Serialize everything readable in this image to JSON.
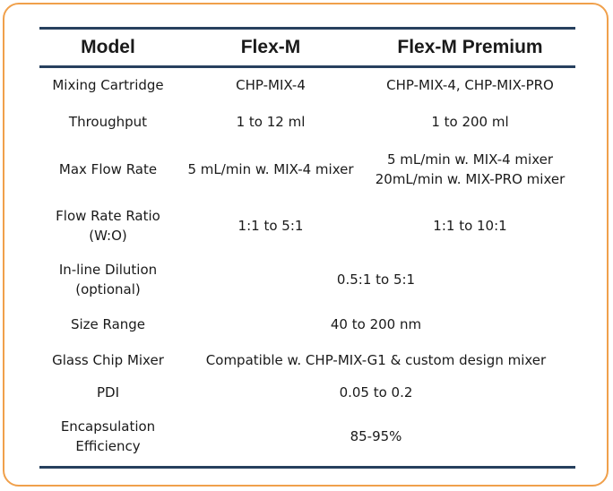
{
  "table": {
    "headers": [
      "Model",
      "Flex-M",
      "Flex-M Premium"
    ],
    "rows": [
      {
        "label": [
          "Mixing Cartridge"
        ],
        "flexm": [
          "CHP-MIX-4"
        ],
        "premium": [
          "CHP-MIX-4, CHP-MIX-PRO"
        ]
      },
      {
        "label": [
          "Throughput"
        ],
        "flexm": [
          "1 to 12 ml"
        ],
        "premium": [
          "1 to 200 ml"
        ]
      },
      {
        "label": [
          "Max Flow Rate"
        ],
        "flexm": [
          "5 mL/min w. MIX-4 mixer"
        ],
        "premium": [
          "5 mL/min w. MIX-4 mixer",
          "20mL/min w. MIX-PRO mixer"
        ]
      },
      {
        "label": [
          "Flow Rate Ratio",
          "(W:O)"
        ],
        "flexm": [
          "1:1 to 5:1"
        ],
        "premium": [
          "1:1 to 10:1"
        ]
      },
      {
        "label": [
          "In-line Dilution",
          "(optional)"
        ],
        "shared": [
          "0.5:1 to 5:1"
        ]
      },
      {
        "label": [
          "Size Range"
        ],
        "shared": [
          "40 to 200 nm"
        ]
      },
      {
        "label": [
          "Glass Chip Mixer"
        ],
        "shared": [
          "Compatible w. CHP-MIX-G1 & custom design mixer"
        ]
      },
      {
        "label": [
          "PDI"
        ],
        "shared": [
          "0.05 to 0.2"
        ]
      },
      {
        "label": [
          "Encapsulation",
          "Efficiency"
        ],
        "shared": [
          "85-95%"
        ]
      }
    ]
  },
  "colors": {
    "frame": "#f0a04b",
    "rule": "#27405e"
  }
}
